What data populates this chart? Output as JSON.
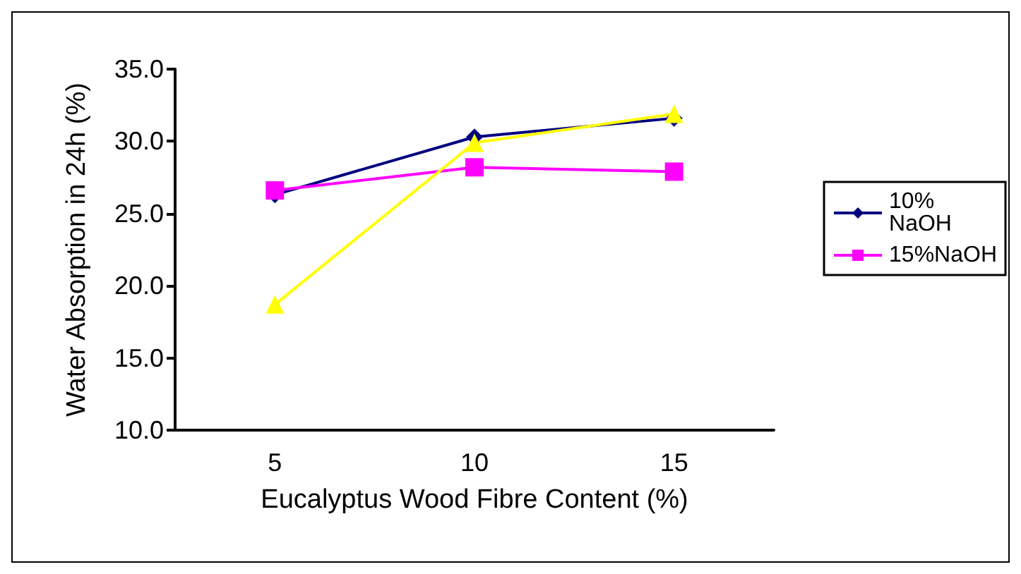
{
  "chart_data": {
    "type": "line",
    "xlabel": "Eucalyptus Wood Fibre Content (%)",
    "ylabel": "Water Absorption in 24h (%)",
    "categories": [
      "5",
      "10",
      "15"
    ],
    "series": [
      {
        "name": "10% NaOH",
        "color": "#000080",
        "marker": "diamond",
        "values": [
          26.3,
          30.3,
          31.6
        ]
      },
      {
        "name": "15%NaOH",
        "color": "#ff00ff",
        "marker": "square",
        "values": [
          26.6,
          28.2,
          27.9
        ]
      },
      {
        "color": "#ffff00",
        "marker": "triangle",
        "values": [
          18.7,
          29.9,
          31.9
        ]
      }
    ],
    "ylim": [
      10,
      35
    ],
    "yticks": [
      {
        "value": 10,
        "label": "10.0"
      },
      {
        "value": 15,
        "label": "15.0"
      },
      {
        "value": 20,
        "label": "20.0"
      },
      {
        "value": 25,
        "label": "25.0"
      },
      {
        "value": 30,
        "label": "30.0"
      },
      {
        "value": 35,
        "label": "35.0"
      }
    ],
    "grid": false,
    "legend": "right"
  }
}
